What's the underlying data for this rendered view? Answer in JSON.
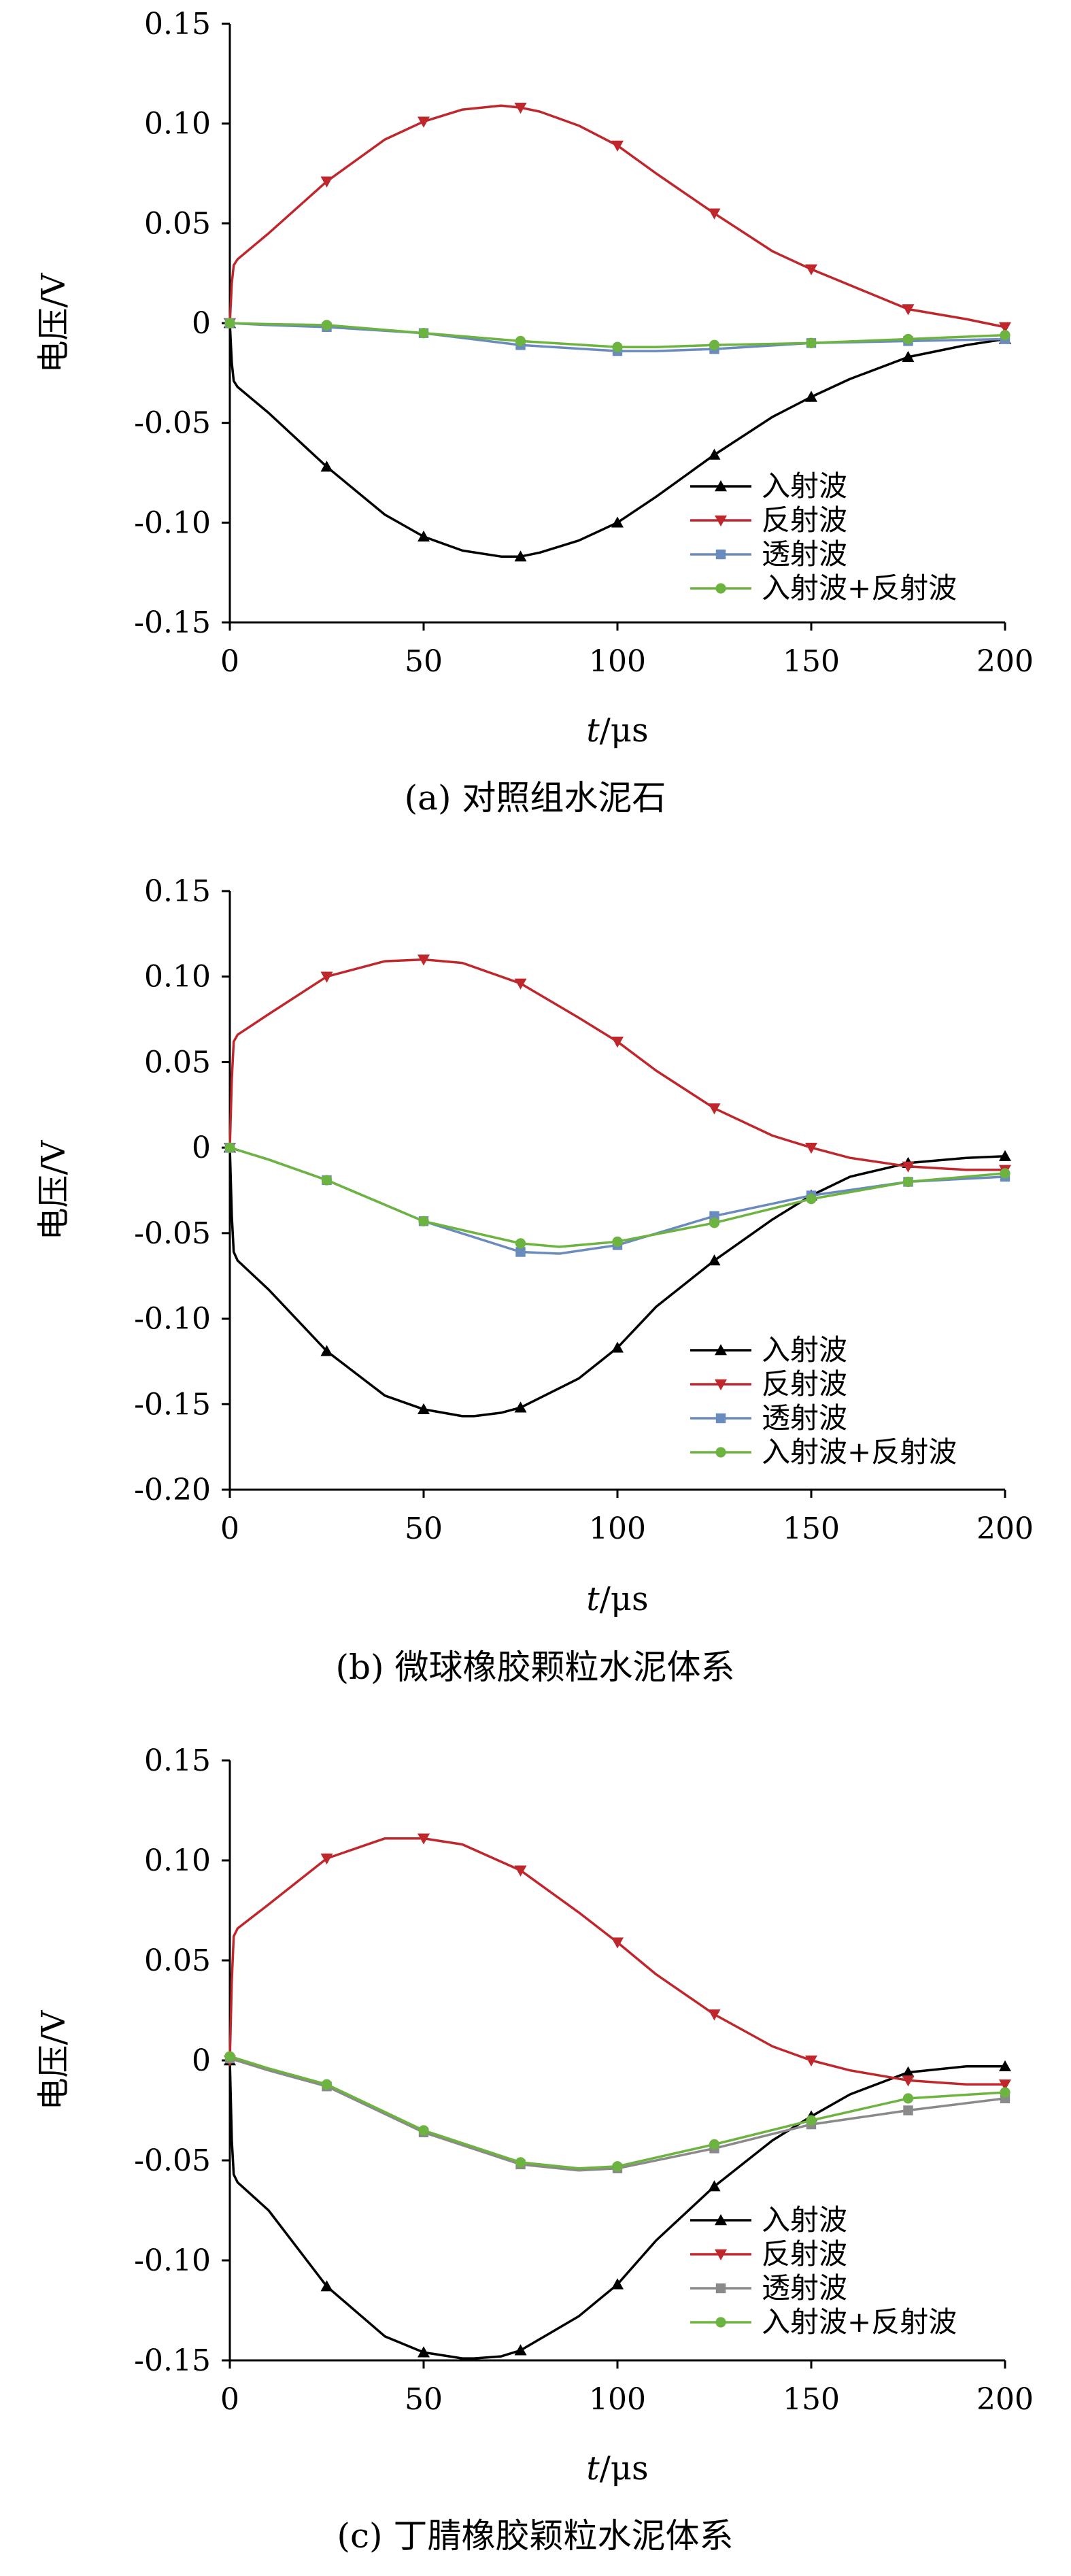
{
  "chart_data": [
    {
      "type": "line",
      "caption": "(a) 对照组水泥石",
      "xlabel_italic": "t",
      "xlabel_unit": "/μs",
      "ylabel": "电压/V",
      "xlim": [
        0,
        200
      ],
      "ylim": [
        -0.15,
        0.15
      ],
      "xticks": [
        0,
        50,
        100,
        150,
        200
      ],
      "yticks": [
        "0.15",
        "0.10",
        "0.05",
        "0",
        "-0.05",
        "-0.10",
        "-0.15"
      ],
      "ytick_values": [
        0.15,
        0.1,
        0.05,
        0,
        -0.05,
        -0.1,
        -0.15
      ],
      "grid": false,
      "legend": "bottom-right",
      "series": [
        {
          "name": "入射波",
          "color": "#000000",
          "marker": "triangle-up",
          "x": [
            0,
            0.5,
            1,
            2,
            10,
            25,
            40,
            50,
            60,
            70,
            75,
            80,
            90,
            100,
            110,
            125,
            140,
            150,
            160,
            175,
            190,
            200
          ],
          "y": [
            0,
            -0.02,
            -0.029,
            -0.032,
            -0.045,
            -0.072,
            -0.096,
            -0.107,
            -0.114,
            -0.117,
            -0.117,
            -0.115,
            -0.109,
            -0.1,
            -0.087,
            -0.066,
            -0.047,
            -0.037,
            -0.028,
            -0.017,
            -0.011,
            -0.008
          ]
        },
        {
          "name": "反射波",
          "color": "#c0272d",
          "marker": "triangle-down",
          "x": [
            0,
            0.5,
            1,
            2,
            10,
            25,
            40,
            50,
            60,
            70,
            75,
            80,
            90,
            100,
            110,
            125,
            140,
            150,
            160,
            175,
            190,
            200
          ],
          "y": [
            0,
            0.02,
            0.029,
            0.032,
            0.045,
            0.071,
            0.092,
            0.101,
            0.107,
            0.109,
            0.108,
            0.106,
            0.099,
            0.089,
            0.075,
            0.055,
            0.036,
            0.027,
            0.019,
            0.007,
            0.002,
            -0.002
          ]
        },
        {
          "name": "透射波",
          "color": "#6a8bbd",
          "marker": "square",
          "x": [
            0,
            10,
            25,
            50,
            75,
            100,
            110,
            125,
            150,
            175,
            200
          ],
          "y": [
            0,
            -0.001,
            -0.002,
            -0.005,
            -0.011,
            -0.014,
            -0.014,
            -0.013,
            -0.01,
            -0.009,
            -0.008
          ]
        },
        {
          "name": "入射波+反射波",
          "color": "#6db33f",
          "marker": "circle",
          "x": [
            0,
            10,
            25,
            50,
            75,
            100,
            110,
            125,
            150,
            175,
            200
          ],
          "y": [
            0,
            -0.0005,
            -0.001,
            -0.005,
            -0.009,
            -0.012,
            -0.012,
            -0.011,
            -0.01,
            -0.008,
            -0.006
          ]
        }
      ]
    },
    {
      "type": "line",
      "caption": "(b) 微球橡胶颗粒水泥体系",
      "xlabel_italic": "t",
      "xlabel_unit": "/μs",
      "ylabel": "电压/V",
      "xlim": [
        0,
        200
      ],
      "ylim": [
        -0.2,
        0.15
      ],
      "xticks": [
        0,
        50,
        100,
        150,
        200
      ],
      "yticks": [
        "0.15",
        "0.10",
        "0.05",
        "0",
        "-0.05",
        "-0.10",
        "-0.15",
        "-0.20"
      ],
      "ytick_values": [
        0.15,
        0.1,
        0.05,
        0,
        -0.05,
        -0.1,
        -0.15,
        -0.2
      ],
      "grid": false,
      "legend": "bottom-right",
      "series": [
        {
          "name": "入射波",
          "color": "#000000",
          "marker": "triangle-up",
          "x": [
            0,
            0.5,
            1,
            2,
            10,
            25,
            40,
            50,
            60,
            63,
            70,
            75,
            90,
            100,
            110,
            125,
            140,
            150,
            160,
            175,
            190,
            200
          ],
          "y": [
            0,
            -0.04,
            -0.061,
            -0.066,
            -0.083,
            -0.119,
            -0.145,
            -0.153,
            -0.157,
            -0.157,
            -0.155,
            -0.152,
            -0.135,
            -0.117,
            -0.093,
            -0.066,
            -0.042,
            -0.028,
            -0.017,
            -0.009,
            -0.006,
            -0.005
          ]
        },
        {
          "name": "反射波",
          "color": "#c0272d",
          "marker": "triangle-down",
          "x": [
            0,
            0.5,
            1,
            2,
            10,
            25,
            40,
            50,
            60,
            75,
            90,
            100,
            110,
            125,
            140,
            150,
            160,
            175,
            190,
            200
          ],
          "y": [
            0,
            0.04,
            0.062,
            0.066,
            0.078,
            0.1,
            0.109,
            0.11,
            0.108,
            0.096,
            0.076,
            0.062,
            0.045,
            0.023,
            0.007,
            0.0,
            -0.006,
            -0.011,
            -0.013,
            -0.013
          ]
        },
        {
          "name": "透射波",
          "color": "#6a8bbd",
          "marker": "square",
          "x": [
            0,
            10,
            25,
            50,
            75,
            85,
            100,
            125,
            150,
            175,
            200
          ],
          "y": [
            0,
            -0.007,
            -0.019,
            -0.043,
            -0.061,
            -0.062,
            -0.057,
            -0.04,
            -0.028,
            -0.02,
            -0.017
          ]
        },
        {
          "name": "入射波+反射波",
          "color": "#6db33f",
          "marker": "circle",
          "x": [
            0,
            10,
            25,
            50,
            75,
            85,
            100,
            125,
            150,
            175,
            200
          ],
          "y": [
            0,
            -0.007,
            -0.019,
            -0.043,
            -0.056,
            -0.058,
            -0.055,
            -0.044,
            -0.03,
            -0.02,
            -0.015
          ]
        }
      ]
    },
    {
      "type": "line",
      "caption": "(c) 丁腈橡胶颖粒水泥体系",
      "xlabel_italic": "t",
      "xlabel_unit": "/μs",
      "ylabel": "电压/V",
      "xlim": [
        0,
        200
      ],
      "ylim": [
        -0.15,
        0.15
      ],
      "xticks": [
        0,
        50,
        100,
        150,
        200
      ],
      "yticks": [
        "0.15",
        "0.10",
        "0.05",
        "0",
        "-0.05",
        "-0.10",
        "-0.15"
      ],
      "ytick_values": [
        0.15,
        0.1,
        0.05,
        0,
        -0.05,
        -0.1,
        -0.15
      ],
      "grid": false,
      "legend": "bottom-right",
      "series": [
        {
          "name": "入射波",
          "color": "#000000",
          "marker": "triangle-up",
          "x": [
            0,
            0.5,
            1,
            2,
            10,
            25,
            40,
            50,
            60,
            63,
            70,
            75,
            90,
            100,
            110,
            125,
            140,
            150,
            160,
            175,
            190,
            200
          ],
          "y": [
            0,
            -0.04,
            -0.057,
            -0.061,
            -0.075,
            -0.113,
            -0.138,
            -0.146,
            -0.149,
            -0.149,
            -0.148,
            -0.145,
            -0.128,
            -0.112,
            -0.09,
            -0.063,
            -0.04,
            -0.028,
            -0.017,
            -0.006,
            -0.003,
            -0.003
          ]
        },
        {
          "name": "反射波",
          "color": "#c0272d",
          "marker": "triangle-down",
          "x": [
            0,
            0.5,
            1,
            2,
            10,
            25,
            40,
            50,
            60,
            75,
            90,
            100,
            110,
            125,
            140,
            150,
            160,
            175,
            190,
            200
          ],
          "y": [
            0,
            0.04,
            0.062,
            0.066,
            0.078,
            0.101,
            0.111,
            0.111,
            0.108,
            0.095,
            0.074,
            0.059,
            0.043,
            0.023,
            0.007,
            0.0,
            -0.005,
            -0.01,
            -0.012,
            -0.012
          ]
        },
        {
          "name": "透射波",
          "color": "#8a8a8a",
          "marker": "square",
          "x": [
            0,
            10,
            25,
            50,
            75,
            90,
            100,
            125,
            150,
            175,
            200
          ],
          "y": [
            0.001,
            -0.005,
            -0.013,
            -0.036,
            -0.052,
            -0.055,
            -0.054,
            -0.044,
            -0.032,
            -0.025,
            -0.019
          ]
        },
        {
          "name": "入射波+反射波",
          "color": "#6db33f",
          "marker": "circle",
          "x": [
            0,
            10,
            25,
            50,
            75,
            90,
            100,
            125,
            150,
            175,
            200
          ],
          "y": [
            0.002,
            -0.004,
            -0.012,
            -0.035,
            -0.051,
            -0.054,
            -0.053,
            -0.042,
            -0.03,
            -0.019,
            -0.016
          ]
        }
      ]
    }
  ]
}
